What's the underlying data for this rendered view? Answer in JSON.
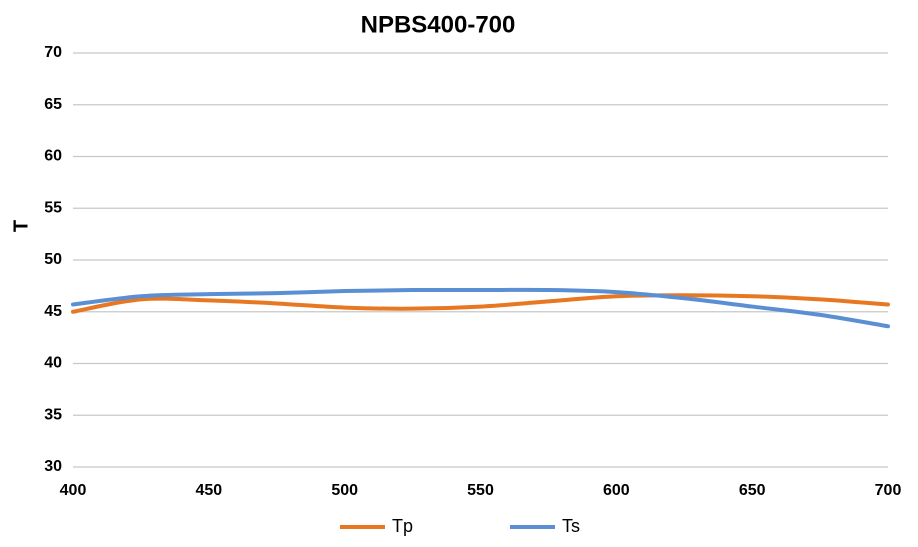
{
  "chart_data": {
    "type": "line",
    "title": "NPBS400-700",
    "y_label": "T",
    "x": [
      400,
      425,
      450,
      475,
      500,
      525,
      550,
      575,
      600,
      625,
      650,
      675,
      700
    ],
    "series": [
      {
        "name": "Tp",
        "color": "#e87722",
        "values": [
          45.0,
          46.2,
          46.1,
          45.8,
          45.4,
          45.3,
          45.5,
          46.0,
          46.5,
          46.6,
          46.5,
          46.2,
          45.7
        ]
      },
      {
        "name": "Ts",
        "color": "#5b8fd4",
        "values": [
          45.7,
          46.5,
          46.7,
          46.8,
          47.0,
          47.1,
          47.1,
          47.1,
          46.9,
          46.3,
          45.5,
          44.7,
          43.6
        ]
      }
    ],
    "xlim": [
      400,
      700
    ],
    "xticks": [
      400,
      450,
      500,
      550,
      600,
      650,
      700
    ],
    "ylim": [
      30,
      70
    ],
    "yticks": [
      30,
      35,
      40,
      45,
      50,
      55,
      60,
      65,
      70
    ],
    "grid": true,
    "legend": "bottom"
  }
}
